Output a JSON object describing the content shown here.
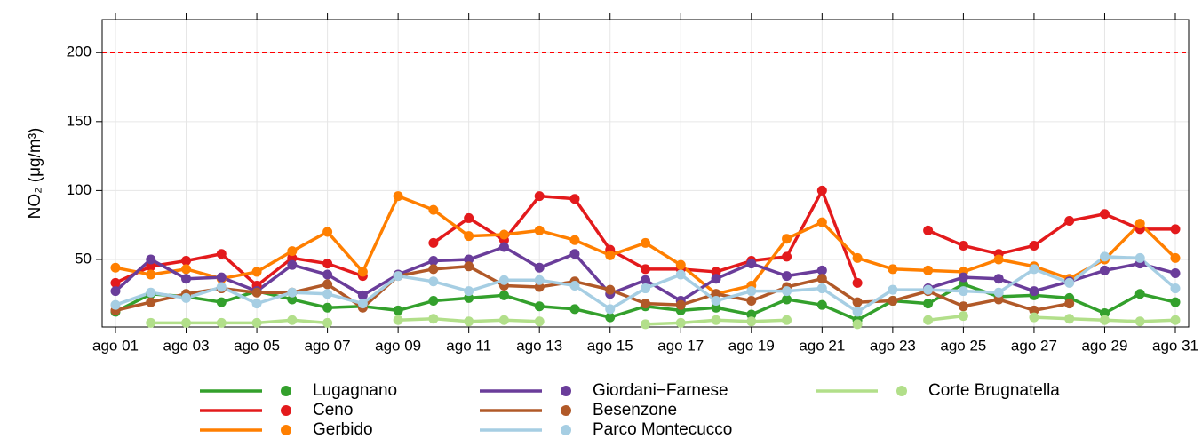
{
  "chart_data": {
    "type": "line",
    "y_label": "NO₂ (μg/m³)",
    "categories": [
      "ago 01",
      null,
      "ago 03",
      null,
      "ago 05",
      null,
      "ago 07",
      null,
      "ago 09",
      null,
      "ago 11",
      null,
      "ago 13",
      null,
      "ago 15",
      null,
      "ago 17",
      null,
      "ago 19",
      null,
      "ago 21",
      null,
      "ago 23",
      null,
      "ago 25",
      null,
      "ago 27",
      null,
      "ago 29",
      null,
      "ago 31"
    ],
    "ylim": [
      1,
      224
    ],
    "yticks": [
      50,
      100,
      150,
      200
    ],
    "grid": true,
    "reference_line": {
      "value": 200,
      "color": "#ff0000"
    },
    "legend_position": "bottom",
    "series": [
      {
        "name": "Lugagnano",
        "color": "#33a02c",
        "values": [
          12,
          25,
          23,
          19,
          27,
          21,
          15,
          16,
          13,
          20,
          22,
          24,
          16,
          14,
          8,
          16,
          13,
          15,
          10,
          21,
          17,
          6,
          20,
          18,
          32,
          23,
          24,
          22,
          11,
          25,
          19
        ]
      },
      {
        "name": "Ceno",
        "color": "#e31a1c",
        "values": [
          33,
          45,
          49,
          54,
          31,
          51,
          47,
          38,
          null,
          62,
          80,
          64,
          96,
          94,
          57,
          43,
          43,
          41,
          49,
          52,
          100,
          33,
          null,
          71,
          60,
          54,
          60,
          78,
          83,
          72,
          72
        ]
      },
      {
        "name": "Gerbido",
        "color": "#ff7f00",
        "values": [
          44,
          39,
          43,
          36,
          41,
          56,
          70,
          41,
          96,
          86,
          67,
          68,
          71,
          64,
          53,
          62,
          46,
          25,
          31,
          65,
          77,
          51,
          43,
          42,
          41,
          50,
          45,
          36,
          50,
          76,
          51
        ]
      },
      {
        "name": "Giordani−Farnese",
        "color": "#6a3d9a",
        "values": [
          27,
          50,
          36,
          37,
          27,
          46,
          39,
          24,
          39,
          49,
          50,
          59,
          44,
          54,
          25,
          35,
          20,
          36,
          47,
          38,
          42,
          null,
          null,
          29,
          37,
          36,
          27,
          34,
          42,
          47,
          40
        ]
      },
      {
        "name": "Besenzone",
        "color": "#b15928",
        "values": [
          13,
          19,
          25,
          29,
          26,
          26,
          32,
          15,
          38,
          43,
          45,
          31,
          30,
          34,
          28,
          18,
          17,
          25,
          20,
          30,
          36,
          19,
          20,
          27,
          16,
          21,
          13,
          18,
          null,
          null,
          null
        ]
      },
      {
        "name": "Parco Montecucco",
        "color": "#a6cee3",
        "values": [
          17,
          26,
          22,
          30,
          18,
          26,
          25,
          18,
          38,
          34,
          27,
          35,
          35,
          31,
          14,
          29,
          39,
          20,
          27,
          27,
          29,
          12,
          28,
          28,
          27,
          26,
          43,
          33,
          52,
          51,
          29
        ]
      },
      {
        "name": "Corte Brugnatella",
        "color": "#b2df8a",
        "values": [
          null,
          4,
          4,
          4,
          4,
          6,
          4,
          null,
          6,
          7,
          5,
          6,
          5,
          null,
          null,
          3,
          4,
          6,
          5,
          6,
          null,
          3,
          null,
          6,
          9,
          null,
          8,
          7,
          6,
          5,
          6
        ]
      }
    ]
  }
}
